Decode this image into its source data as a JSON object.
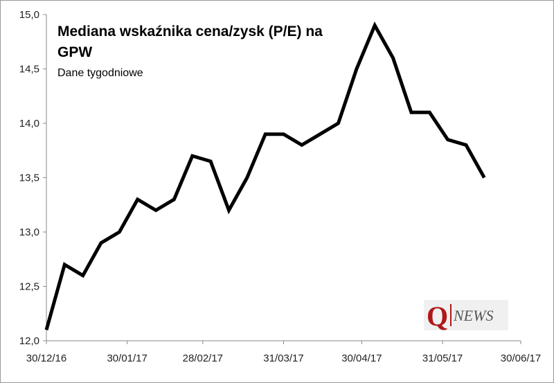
{
  "chart_data": {
    "type": "line",
    "title": "Mediana wskaźnika cena/zysk (P/E) na GPW",
    "subtitle": "Dane tygodniowe",
    "x": [
      "2016-12-30",
      "2017-01-06",
      "2017-01-13",
      "2017-01-20",
      "2017-01-27",
      "2017-02-03",
      "2017-02-10",
      "2017-02-17",
      "2017-02-24",
      "2017-03-03",
      "2017-03-10",
      "2017-03-17",
      "2017-03-24",
      "2017-03-31",
      "2017-04-07",
      "2017-04-14",
      "2017-04-21",
      "2017-04-28",
      "2017-05-05",
      "2017-05-12",
      "2017-05-19",
      "2017-05-26",
      "2017-06-02",
      "2017-06-09",
      "2017-06-16"
    ],
    "values": [
      12.1,
      12.7,
      12.6,
      12.9,
      13.0,
      13.3,
      13.2,
      13.3,
      13.7,
      13.65,
      13.2,
      13.5,
      13.9,
      13.9,
      13.8,
      13.9,
      14.0,
      14.5,
      14.9,
      14.6,
      14.1,
      14.1,
      13.85,
      13.8,
      13.5
    ],
    "color": "#000000",
    "xlim": [
      "2016-12-30",
      "2017-06-30"
    ],
    "xticks": [
      {
        "value": "2016-12-30",
        "label": "30/12/16"
      },
      {
        "value": "2017-01-30",
        "label": "30/01/17"
      },
      {
        "value": "2017-02-28",
        "label": "28/02/17"
      },
      {
        "value": "2017-03-31",
        "label": "31/03/17"
      },
      {
        "value": "2017-04-30",
        "label": "30/04/17"
      },
      {
        "value": "2017-05-31",
        "label": "31/05/17"
      },
      {
        "value": "2017-06-30",
        "label": "30/06/17"
      }
    ],
    "ylim": [
      12,
      15
    ],
    "yticks": [
      {
        "value": 12,
        "label": "12,0"
      },
      {
        "value": 12.5,
        "label": "12,5"
      },
      {
        "value": 13,
        "label": "13,0"
      },
      {
        "value": 13.5,
        "label": "13,5"
      },
      {
        "value": 14,
        "label": "14,0"
      },
      {
        "value": 14.5,
        "label": "14,5"
      },
      {
        "value": 15,
        "label": "15,0"
      }
    ],
    "grid": false,
    "logo": {
      "letter": "Q",
      "text": "NEWS"
    }
  }
}
